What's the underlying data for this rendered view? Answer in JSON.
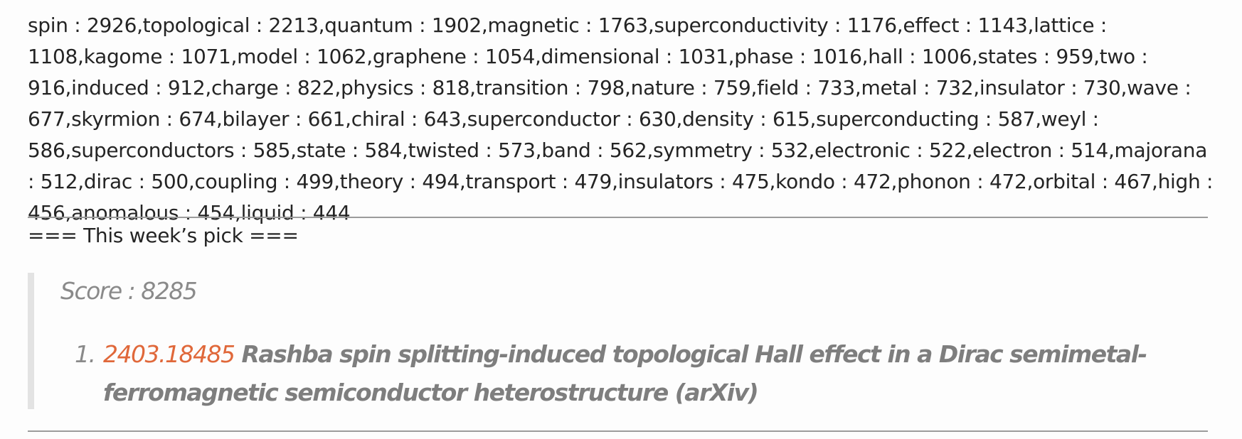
{
  "word_frequency": {
    "text": "spin : 2926,topological : 2213,quantum : 1902,magnetic : 1763,superconductivity : 1176,effect : 1143,lattice : 1108,kagome : 1071,model : 1062,graphene : 1054,dimensional : 1031,phase : 1016,hall : 1006,states : 959,two : 916,induced : 912,charge : 822,physics : 818,transition : 798,nature : 759,field : 733,metal : 732,insulator : 730,wave : 677,skyrmion : 674,bilayer : 661,chiral : 643,superconductor : 630,density : 615,superconducting : 587,weyl : 586,superconductors : 585,state : 584,twisted : 573,band : 562,symmetry : 532,electronic : 522,electron : 514,majorana : 512,dirac : 500,coupling : 499,theory : 494,transport : 479,insulators : 475,kondo : 472,phonon : 472,orbital : 467,high : 456,anomalous : 454,liquid : 444"
  },
  "weekly_pick": {
    "heading": "=== This week’s pick ===",
    "score": "Score : 8285",
    "item": {
      "number": "1.",
      "arxiv_id": "2403.18485",
      "title": " Rashba spin splitting-induced topological Hall effect in a Dirac semimetal-ferromagnetic semiconductor heterostructure (arXiv)"
    }
  },
  "colors": {
    "link": "#e0683a",
    "quote_border": "#e3e3e3",
    "rule": "#9c9c9c"
  }
}
